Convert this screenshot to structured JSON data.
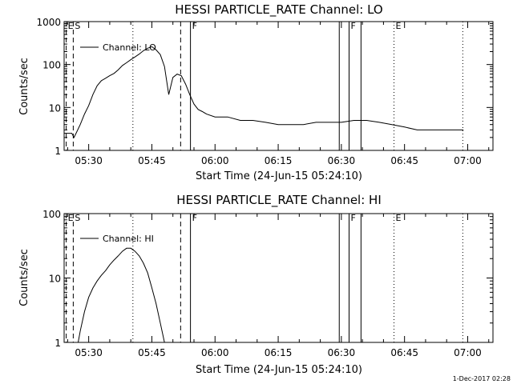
{
  "timestamp": "1-Dec-2017 02:28",
  "chart_data": [
    {
      "type": "line",
      "title": "HESSI PARTICLE_RATE Channel: LO",
      "xlabel": "Start Time (24-Jun-15 05:24:10)",
      "ylabel": "Counts/sec",
      "yscale": "log",
      "ylim": [
        1,
        1000
      ],
      "xlim": [
        "05:24:10",
        "07:06:00"
      ],
      "x_ticks": [
        "05:30",
        "05:45",
        "06:00",
        "06:15",
        "06:30",
        "06:45",
        "07:00"
      ],
      "y_ticks": [
        "1",
        "10",
        "100",
        "1000"
      ],
      "legend": {
        "label": "Channel: LO",
        "placement": "top-left"
      },
      "markers": [
        {
          "label": "E",
          "time": "05:24:40",
          "style": "dashed"
        },
        {
          "label": "S",
          "time": "05:26:20",
          "style": "dashed"
        },
        {
          "label": "",
          "time": "05:40:30",
          "style": "dotted"
        },
        {
          "label": "",
          "time": "05:51:50",
          "style": "dashed"
        },
        {
          "label": "F",
          "time": "05:54:10",
          "style": "solid"
        },
        {
          "label": "",
          "time": "06:29:30",
          "style": "solid"
        },
        {
          "label": "F",
          "time": "06:31:50",
          "style": "solid"
        },
        {
          "label": "",
          "time": "06:34:40",
          "style": "solid"
        },
        {
          "label": "E",
          "time": "06:42:30",
          "style": "dotted"
        },
        {
          "label": "",
          "time": "06:58:50",
          "style": "dotted"
        }
      ],
      "series": [
        {
          "x": [
            "05:24:10",
            "05:26:00",
            "05:26:30",
            "05:27:00",
            "05:28:00",
            "05:29:00",
            "05:30:00",
            "05:31:00",
            "05:32:00",
            "05:33:00",
            "05:34:00",
            "05:35:00",
            "05:36:00",
            "05:37:00",
            "05:38:00",
            "05:39:00",
            "05:40:00",
            "05:41:00",
            "05:42:00",
            "05:43:00",
            "05:44:00",
            "05:45:00",
            "05:46:00",
            "05:47:00",
            "05:48:00",
            "05:49:00",
            "05:50:00",
            "05:51:00",
            "05:52:00",
            "05:53:00",
            "05:54:00",
            "05:55:00",
            "05:56:00",
            "05:57:00",
            "05:58:00",
            "06:00:00",
            "06:03:00",
            "06:06:00",
            "06:09:00",
            "06:12:00",
            "06:15:00",
            "06:18:00",
            "06:21:00",
            "06:24:00",
            "06:27:00",
            "06:30:00",
            "06:33:00",
            "06:36:00",
            "06:39:00",
            "06:42:00",
            "06:45:00",
            "06:48:00",
            "06:51:00",
            "06:54:00",
            "06:57:00",
            "06:59:00"
          ],
          "y": [
            2.5,
            2.5,
            2,
            2.5,
            4,
            7,
            11,
            20,
            32,
            42,
            48,
            55,
            62,
            75,
            95,
            110,
            130,
            150,
            175,
            210,
            240,
            260,
            220,
            170,
            90,
            20,
            50,
            60,
            55,
            35,
            20,
            12,
            9,
            8,
            7,
            6,
            6,
            5,
            5,
            4.5,
            4,
            4,
            4,
            4.5,
            4.5,
            4.5,
            5,
            5,
            4.5,
            4,
            3.5,
            3,
            3,
            3,
            3,
            3
          ]
        }
      ]
    },
    {
      "type": "line",
      "title": "HESSI PARTICLE_RATE Channel: HI",
      "xlabel": "Start Time (24-Jun-15 05:24:10)",
      "ylabel": "Counts/sec",
      "yscale": "log",
      "ylim": [
        1,
        100
      ],
      "xlim": [
        "05:24:10",
        "07:06:00"
      ],
      "x_ticks": [
        "05:30",
        "05:45",
        "06:00",
        "06:15",
        "06:30",
        "06:45",
        "07:00"
      ],
      "y_ticks": [
        "1",
        "10",
        "100"
      ],
      "legend": {
        "label": "Channel: HI",
        "placement": "top-left"
      },
      "markers": [
        {
          "label": "E",
          "time": "05:24:40",
          "style": "dashed"
        },
        {
          "label": "S",
          "time": "05:26:20",
          "style": "dashed"
        },
        {
          "label": "",
          "time": "05:40:30",
          "style": "dotted"
        },
        {
          "label": "",
          "time": "05:51:50",
          "style": "dashed"
        },
        {
          "label": "F",
          "time": "05:54:10",
          "style": "solid"
        },
        {
          "label": "",
          "time": "06:29:30",
          "style": "solid"
        },
        {
          "label": "F",
          "time": "06:31:50",
          "style": "solid"
        },
        {
          "label": "",
          "time": "06:34:40",
          "style": "solid"
        },
        {
          "label": "E",
          "time": "06:42:30",
          "style": "dotted"
        },
        {
          "label": "",
          "time": "06:58:50",
          "style": "dotted"
        }
      ],
      "series": [
        {
          "x": [
            "05:27:30",
            "05:28:00",
            "05:29:00",
            "05:30:00",
            "05:31:00",
            "05:32:00",
            "05:33:00",
            "05:34:00",
            "05:35:00",
            "05:36:00",
            "05:37:00",
            "05:38:00",
            "05:39:00",
            "05:40:00",
            "05:41:00",
            "05:42:00",
            "05:43:00",
            "05:44:00",
            "05:45:00",
            "05:46:00",
            "05:47:00",
            "05:48:00"
          ],
          "y": [
            1,
            1.5,
            3,
            5,
            7,
            9,
            11,
            13,
            16,
            19,
            22,
            26,
            29,
            29,
            26,
            22,
            17,
            12,
            7,
            4,
            2,
            1
          ]
        }
      ]
    }
  ]
}
